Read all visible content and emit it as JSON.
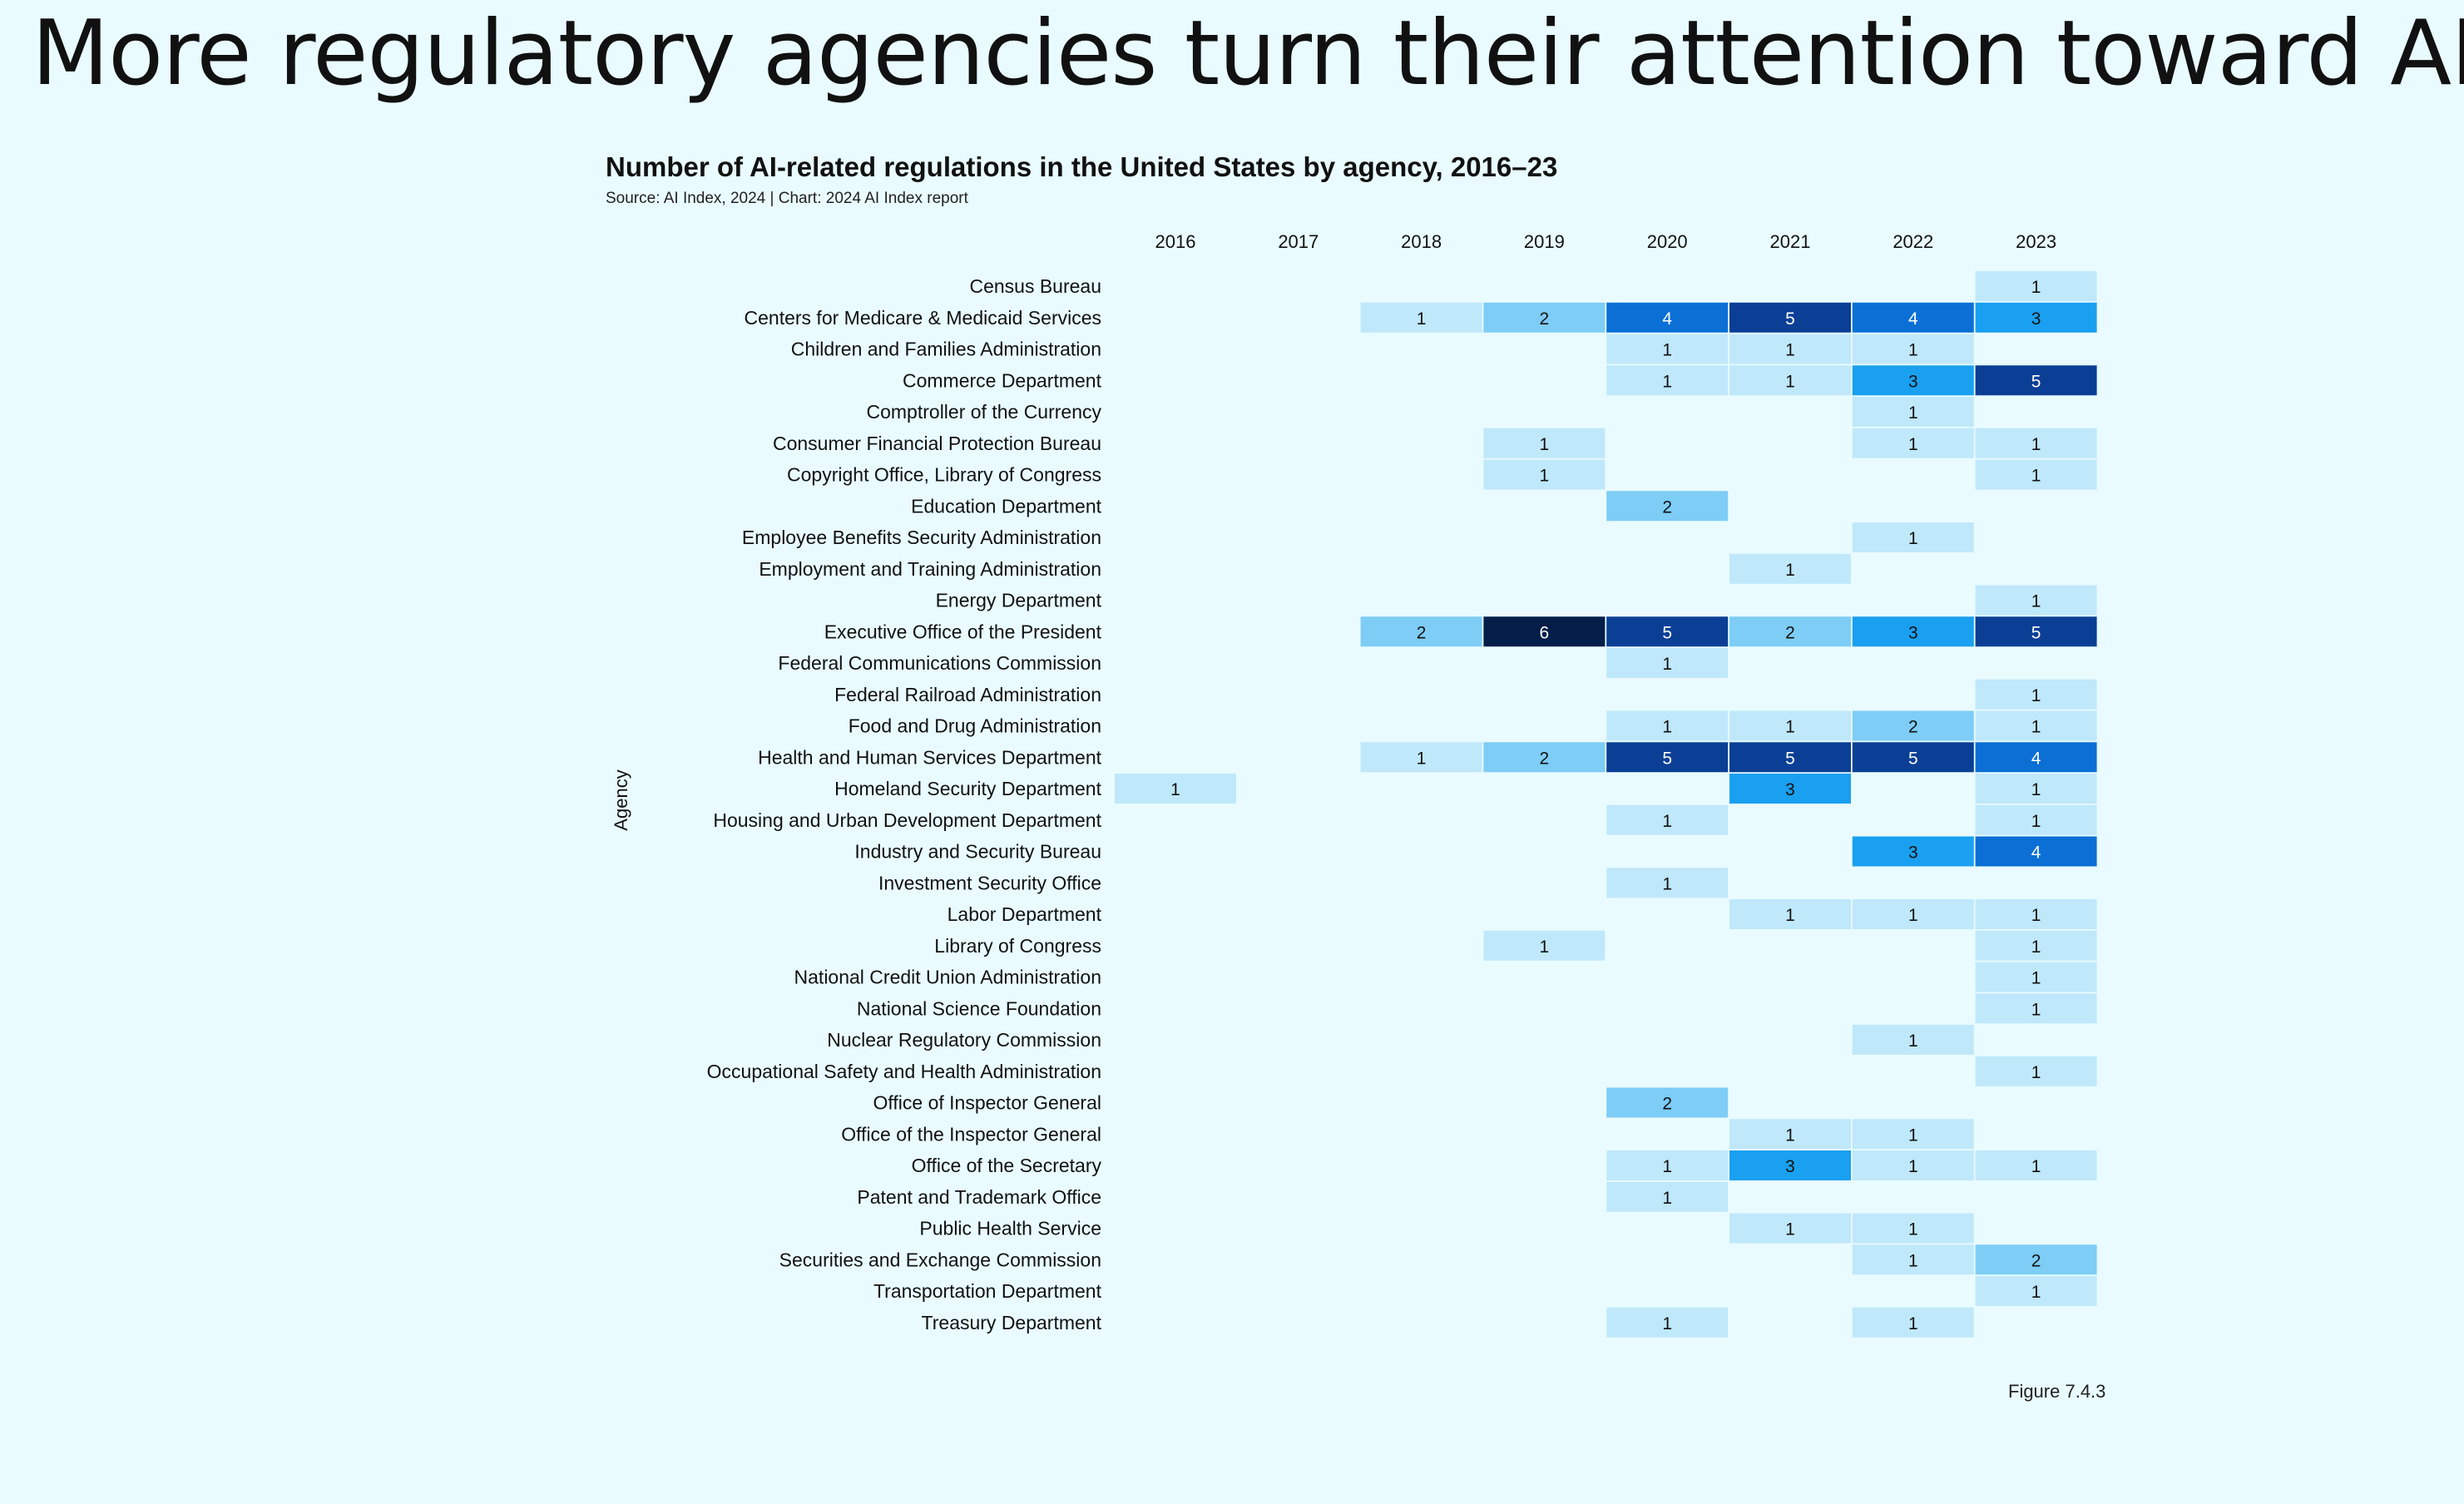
{
  "slide": {
    "title": "More regulatory agencies turn their attention toward AI",
    "figure_label": "Figure 7.4.3"
  },
  "colors": {
    "background": "#e9fbff",
    "scale": [
      "#d8f3fd",
      "#bfe8fb",
      "#7dcdf6",
      "#1aa0f0",
      "#0b6fd6",
      "#0b3f95",
      "#041e4a"
    ]
  },
  "chart_data": {
    "type": "heatmap",
    "title": "Number of AI-related regulations in the United States by agency, 2016–23",
    "subtitle": "Source: AI Index, 2024 | Chart: 2024 AI Index report",
    "xlabel": "",
    "ylabel": "Agency",
    "x": [
      "2016",
      "2017",
      "2018",
      "2019",
      "2020",
      "2021",
      "2022",
      "2023"
    ],
    "y": [
      "Census Bureau",
      "Centers for Medicare & Medicaid Services",
      "Children and Families Administration",
      "Commerce Department",
      "Comptroller of the Currency",
      "Consumer Financial Protection Bureau",
      "Copyright Office, Library of Congress",
      "Education Department",
      "Employee Benefits Security Administration",
      "Employment and Training Administration",
      "Energy Department",
      "Executive Office of the President",
      "Federal Communications Commission",
      "Federal Railroad Administration",
      "Food and Drug Administration",
      "Health and Human Services Department",
      "Homeland Security Department",
      "Housing and Urban Development Department",
      "Industry and Security Bureau",
      "Investment Security Office",
      "Labor Department",
      "Library of Congress",
      "National Credit Union Administration",
      "National Science Foundation",
      "Nuclear Regulatory Commission",
      "Occupational Safety and Health Administration",
      "Office of Inspector General",
      "Office of the Inspector General",
      "Office of the Secretary",
      "Patent and Trademark Office",
      "Public Health Service",
      "Securities and Exchange Commission",
      "Transportation Department",
      "Treasury Department"
    ],
    "values": [
      [
        null,
        null,
        null,
        null,
        null,
        null,
        null,
        1
      ],
      [
        null,
        null,
        1,
        2,
        4,
        5,
        4,
        3
      ],
      [
        null,
        null,
        null,
        null,
        1,
        1,
        1,
        null
      ],
      [
        null,
        null,
        null,
        null,
        1,
        1,
        3,
        5
      ],
      [
        null,
        null,
        null,
        null,
        null,
        null,
        1,
        null
      ],
      [
        null,
        null,
        null,
        1,
        null,
        null,
        1,
        1
      ],
      [
        null,
        null,
        null,
        1,
        null,
        null,
        null,
        1
      ],
      [
        null,
        null,
        null,
        null,
        2,
        null,
        null,
        null
      ],
      [
        null,
        null,
        null,
        null,
        null,
        null,
        1,
        null
      ],
      [
        null,
        null,
        null,
        null,
        null,
        1,
        null,
        null
      ],
      [
        null,
        null,
        null,
        null,
        null,
        null,
        null,
        1
      ],
      [
        null,
        null,
        2,
        6,
        5,
        2,
        3,
        5
      ],
      [
        null,
        null,
        null,
        null,
        1,
        null,
        null,
        null
      ],
      [
        null,
        null,
        null,
        null,
        null,
        null,
        null,
        1
      ],
      [
        null,
        null,
        null,
        null,
        1,
        1,
        2,
        1
      ],
      [
        null,
        null,
        1,
        2,
        5,
        5,
        5,
        4
      ],
      [
        1,
        null,
        null,
        null,
        null,
        3,
        null,
        1
      ],
      [
        null,
        null,
        null,
        null,
        1,
        null,
        null,
        1
      ],
      [
        null,
        null,
        null,
        null,
        null,
        null,
        3,
        4
      ],
      [
        null,
        null,
        null,
        null,
        1,
        null,
        null,
        null
      ],
      [
        null,
        null,
        null,
        null,
        null,
        1,
        1,
        1
      ],
      [
        null,
        null,
        null,
        1,
        null,
        null,
        null,
        1
      ],
      [
        null,
        null,
        null,
        null,
        null,
        null,
        null,
        1
      ],
      [
        null,
        null,
        null,
        null,
        null,
        null,
        null,
        1
      ],
      [
        null,
        null,
        null,
        null,
        null,
        null,
        1,
        null
      ],
      [
        null,
        null,
        null,
        null,
        null,
        null,
        null,
        1
      ],
      [
        null,
        null,
        null,
        null,
        2,
        null,
        null,
        null
      ],
      [
        null,
        null,
        null,
        null,
        null,
        1,
        1,
        null
      ],
      [
        null,
        null,
        null,
        null,
        1,
        3,
        1,
        1
      ],
      [
        null,
        null,
        null,
        null,
        1,
        null,
        null,
        null
      ],
      [
        null,
        null,
        null,
        null,
        null,
        1,
        1,
        null
      ],
      [
        null,
        null,
        null,
        null,
        null,
        null,
        1,
        2
      ],
      [
        null,
        null,
        null,
        null,
        null,
        null,
        null,
        1
      ],
      [
        null,
        null,
        null,
        null,
        1,
        null,
        1,
        null
      ]
    ],
    "value_range": [
      1,
      6
    ],
    "legend": "none",
    "grid": false
  }
}
